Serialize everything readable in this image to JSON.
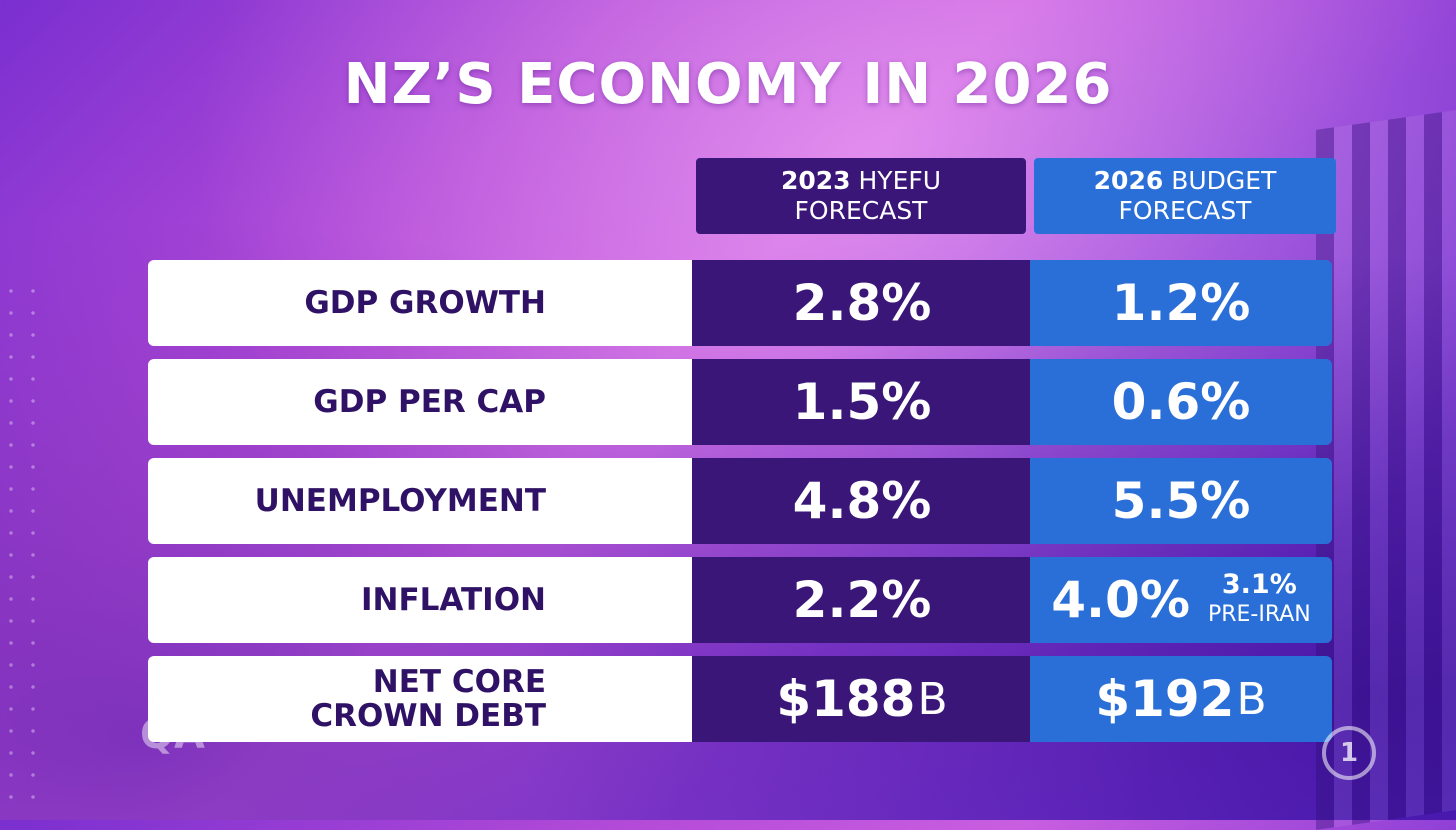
{
  "title": "NZ’S ECONOMY IN 2026",
  "columns": [
    {
      "year": "2023",
      "name": "HYEFU",
      "line2": "FORECAST"
    },
    {
      "year": "2026",
      "name": "BUDGET",
      "line2": "FORECAST"
    }
  ],
  "rows": [
    {
      "label": "GDP GROWTH",
      "label2": "",
      "hyefu": "2.8%",
      "budget": "1.2%"
    },
    {
      "label": "GDP PER CAP",
      "label2": "",
      "hyefu": "1.5%",
      "budget": "0.6%"
    },
    {
      "label": "UNEMPLOYMENT",
      "label2": "",
      "hyefu": "4.8%",
      "budget": "5.5%"
    },
    {
      "label": "INFLATION",
      "label2": "",
      "hyefu": "2.2%",
      "budget": "4.0%",
      "budget_note_value": "3.1%",
      "budget_note_label": "PRE-IRAN"
    },
    {
      "label": "NET CORE",
      "label2": "CROWN DEBT",
      "hyefu": "$188",
      "hyefu_unit": "B",
      "budget": "$192",
      "budget_unit": "B"
    }
  ],
  "logos": {
    "show_logo": "QA",
    "channel_logo": "1"
  },
  "colors": {
    "hyefu": "#3a1678",
    "budget": "#2a6fd8",
    "label_text": "#2f1266",
    "label_bg": "#ffffff"
  }
}
